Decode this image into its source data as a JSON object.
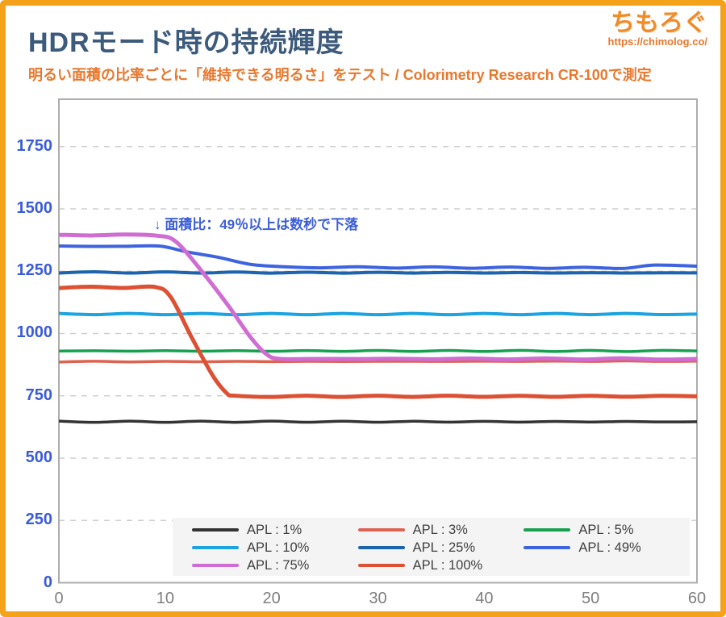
{
  "header": {
    "title": "HDRモード時の持続輝度",
    "subtitle": "明るい面積の比率ごとに「維持できる明るさ」をテスト / Colorimetry Research CR-100で測定",
    "logo": {
      "name": "ちもろぐ",
      "url": "https://chimolog.co/"
    }
  },
  "annotation": {
    "text": "↓ 面積比：49％以上は数秒で下落",
    "color": "#3D5ED6"
  },
  "colors": {
    "frame_border": "#F5A21B",
    "title": "#3C5A7B",
    "subtitle": "#E8782E",
    "plot_border": "#ADADAD",
    "gridline": "#CFCFCF",
    "y_tick_label": "#3A5BD9",
    "x_tick_label": "#7E7E7E",
    "legend_bg": "#F4F4F4"
  },
  "chart_data": {
    "type": "line",
    "title": "HDRモード時の持続輝度",
    "xlabel": "",
    "ylabel": "",
    "xlim": [
      0,
      60
    ],
    "ylim": [
      0,
      1940
    ],
    "x_ticks": [
      0,
      10,
      20,
      30,
      40,
      50,
      60
    ],
    "y_ticks": [
      0,
      250,
      500,
      750,
      1000,
      1250,
      1500,
      1750
    ],
    "grid": "horizontal-dashed",
    "legend_position": "bottom-inside",
    "series": [
      {
        "name": "APL : 1%",
        "color": "#333333",
        "width": 3.5,
        "points": [
          [
            0,
            646
          ],
          [
            60,
            646
          ]
        ]
      },
      {
        "name": "APL : 3%",
        "color": "#DC6352",
        "width": 3.5,
        "points": [
          [
            0,
            887
          ],
          [
            60,
            889
          ]
        ]
      },
      {
        "name": "APL : 5%",
        "color": "#17A04F",
        "width": 3.5,
        "points": [
          [
            0,
            930
          ],
          [
            60,
            930
          ]
        ]
      },
      {
        "name": "APL : 10%",
        "color": "#1CA3E0",
        "width": 4,
        "points": [
          [
            0,
            1078
          ],
          [
            60,
            1078
          ]
        ]
      },
      {
        "name": "APL : 25%",
        "color": "#1C64AD",
        "width": 4,
        "points": [
          [
            0,
            1245
          ],
          [
            60,
            1243
          ]
        ]
      },
      {
        "name": "APL : 49%",
        "color": "#3D63DE",
        "width": 4,
        "points": [
          [
            0,
            1350
          ],
          [
            9.5,
            1350
          ],
          [
            12,
            1330
          ],
          [
            15,
            1303
          ],
          [
            18,
            1280
          ],
          [
            21,
            1266
          ],
          [
            53,
            1263
          ],
          [
            56,
            1272
          ],
          [
            60,
            1270
          ]
        ]
      },
      {
        "name": "APL : 75%",
        "color": "#D06DD3",
        "width": 5,
        "points": [
          [
            0,
            1395
          ],
          [
            9.2,
            1395
          ],
          [
            11,
            1368
          ],
          [
            13.5,
            1245
          ],
          [
            16,
            1110
          ],
          [
            18,
            985
          ],
          [
            19.5,
            915
          ],
          [
            20.8,
            898
          ],
          [
            60,
            898
          ]
        ]
      },
      {
        "name": "APL : 100%",
        "color": "#DC5134",
        "width": 5,
        "points": [
          [
            0,
            1185
          ],
          [
            9,
            1185
          ],
          [
            10.5,
            1145
          ],
          [
            12.5,
            985
          ],
          [
            14.5,
            830
          ],
          [
            15.8,
            758
          ],
          [
            16.5,
            748
          ],
          [
            60,
            748
          ]
        ]
      }
    ]
  }
}
